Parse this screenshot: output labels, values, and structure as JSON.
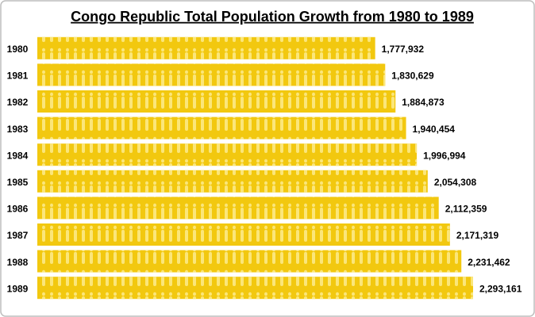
{
  "chart_data": {
    "type": "bar",
    "orientation": "horizontal",
    "title": "Congo Republic Total Population Growth from 1980 to 1989",
    "categories": [
      "1980",
      "1981",
      "1982",
      "1983",
      "1984",
      "1985",
      "1986",
      "1987",
      "1988",
      "1989"
    ],
    "values": [
      1777932,
      1830629,
      1884873,
      1940454,
      1996994,
      2054308,
      2112359,
      2171319,
      2231462,
      2293161
    ],
    "value_labels": [
      "1,777,932",
      "1,830,629",
      "1,884,873",
      "1,940,454",
      "1,996,994",
      "2,054,308",
      "2,112,359",
      "2,171,319",
      "2,231,462",
      "2,293,161"
    ],
    "color": "#f2c80f"
  }
}
